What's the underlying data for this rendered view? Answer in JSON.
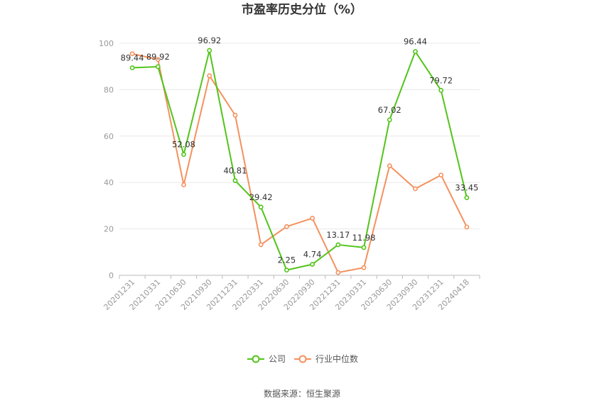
{
  "chart_data": {
    "type": "line",
    "title": "市盈率历史分位（%）",
    "categories": [
      "20201231",
      "20210331",
      "20210630",
      "20210930",
      "20211231",
      "20220331",
      "20220630",
      "20220930",
      "20221231",
      "20230331",
      "20230630",
      "20230930",
      "20231231",
      "20240418"
    ],
    "series": [
      {
        "name": "公司",
        "color": "#52c41a",
        "values": [
          89.44,
          89.92,
          52.08,
          96.92,
          40.81,
          29.42,
          2.25,
          4.74,
          13.17,
          11.98,
          67.02,
          96.44,
          79.72,
          33.45
        ],
        "labels": [
          "89.44",
          "89.92",
          "52.08",
          "96.92",
          "40.81",
          "29.42",
          "2.25",
          "4.74",
          "13.17",
          "11.98",
          "67.02",
          "96.44",
          "79.72",
          "33.45"
        ]
      },
      {
        "name": "行业中位数",
        "color": "#f4915e",
        "values": [
          95.5,
          93.0,
          39.0,
          86.0,
          69.0,
          13.2,
          21.0,
          24.6,
          1.2,
          3.3,
          47.2,
          37.3,
          43.2,
          20.8
        ]
      }
    ],
    "ylim": [
      0,
      100
    ],
    "yticks": [
      0,
      20,
      40,
      60,
      80,
      100
    ],
    "grid": true,
    "legend_position": "bottom"
  },
  "source_text": "数据来源：恒生聚源"
}
